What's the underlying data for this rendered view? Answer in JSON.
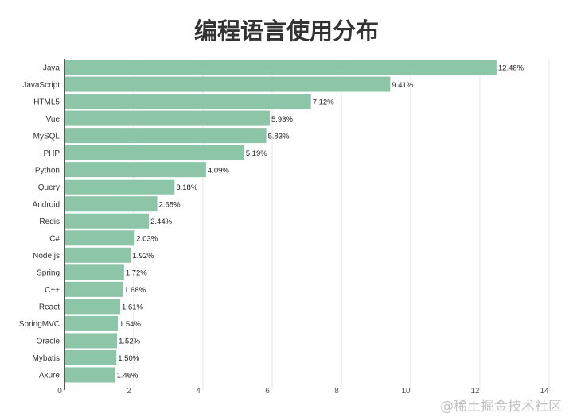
{
  "watermark": "@稀土掘金技术社区",
  "chart_data": {
    "type": "bar",
    "orientation": "horizontal",
    "title": "编程语言使用分布",
    "xlabel": "",
    "ylabel": "",
    "xlim": [
      0,
      14
    ],
    "xticks": [
      0,
      2,
      4,
      6,
      8,
      10,
      12,
      14
    ],
    "grid": true,
    "bar_color": "#8cc5a7",
    "categories": [
      "Java",
      "JavaScript",
      "HTML5",
      "Vue",
      "MySQL",
      "PHP",
      "Python",
      "jQuery",
      "Android",
      "Redis",
      "C#",
      "Node.js",
      "Spring",
      "C++",
      "React",
      "SpringMVC",
      "Oracle",
      "Mybatis",
      "Axure"
    ],
    "values": [
      12.48,
      9.41,
      7.12,
      5.93,
      5.83,
      5.19,
      4.09,
      3.18,
      2.68,
      2.44,
      2.03,
      1.92,
      1.72,
      1.68,
      1.61,
      1.54,
      1.52,
      1.5,
      1.46
    ],
    "labels": [
      "12.48%",
      "9.41%",
      "7.12%",
      "5.93%",
      "5.83%",
      "5.19%",
      "4.09%",
      "3.18%",
      "2.68%",
      "2.44%",
      "2.03%",
      "1.92%",
      "1.72%",
      "1.68%",
      "1.61%",
      "1.54%",
      "1.52%",
      "1.50%",
      "1.46%"
    ]
  }
}
